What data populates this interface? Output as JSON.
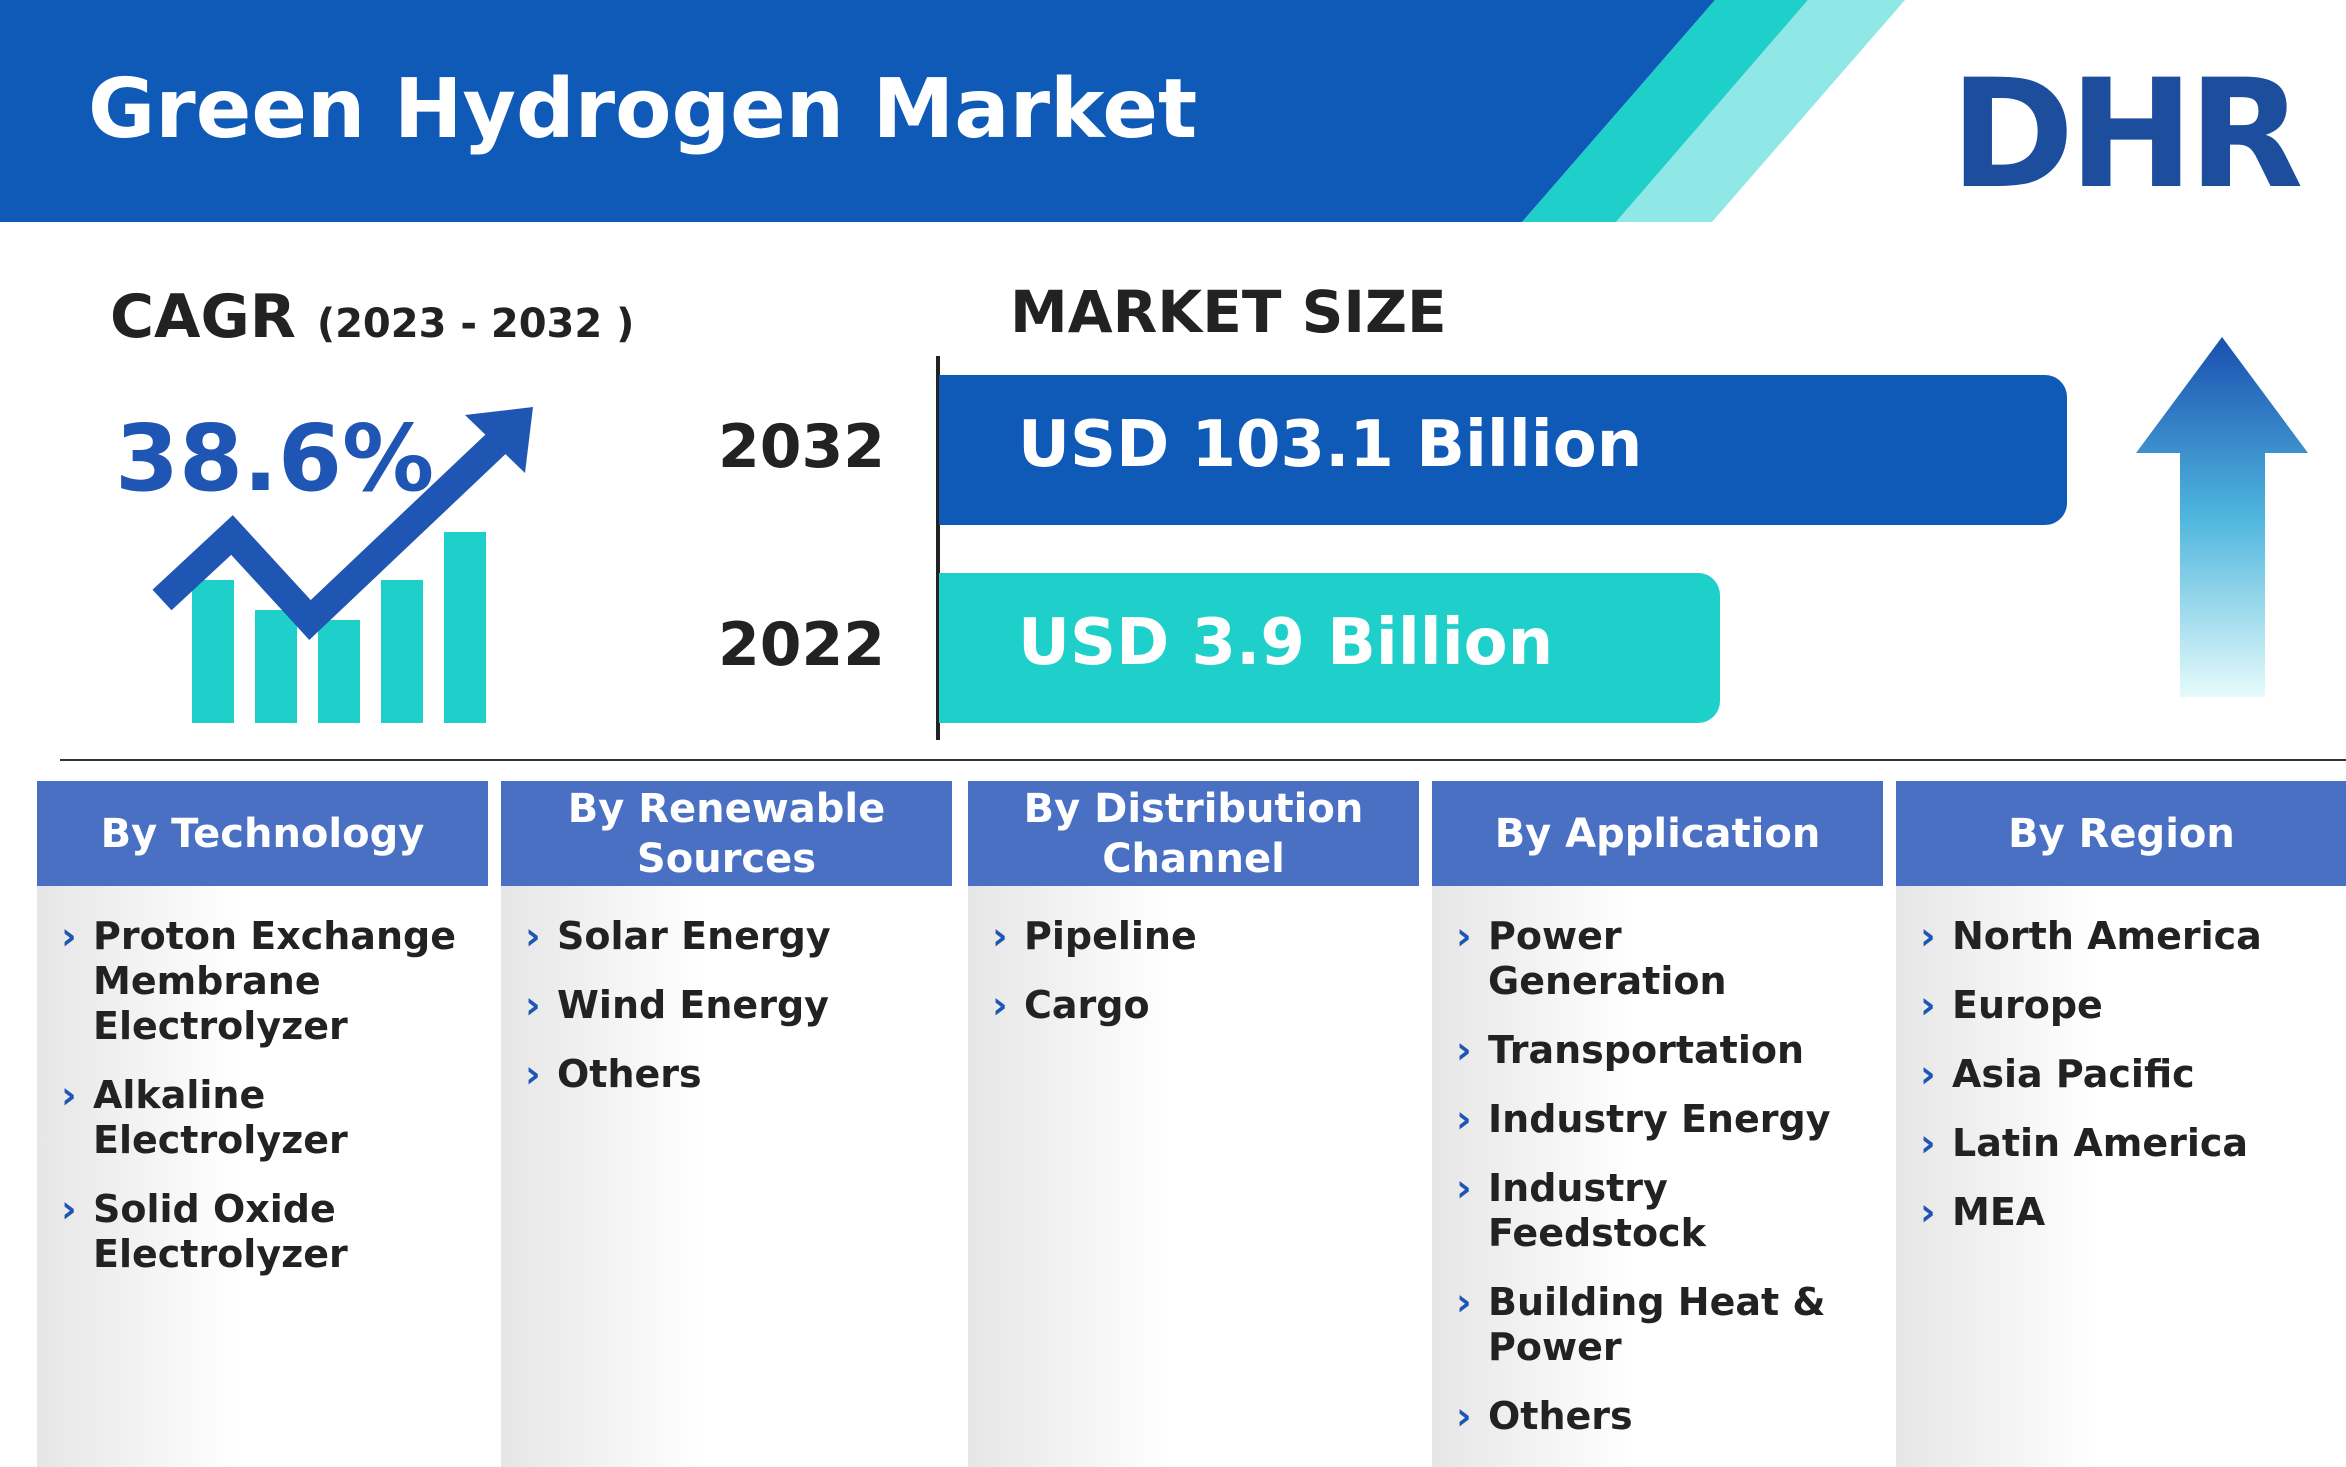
{
  "header": {
    "title": "Green Hydrogen Market",
    "logo": "DHR"
  },
  "cagr": {
    "label": "CAGR",
    "period": "(2023 - 2032 )",
    "value": "38.6%"
  },
  "market_size": {
    "title": "MARKET SIZE",
    "rows": [
      {
        "year": "2032",
        "value": "USD 103.1 Billion"
      },
      {
        "year": "2022",
        "value": "USD 3.9 Billion"
      }
    ]
  },
  "segments": [
    {
      "title": "By Technology",
      "items": [
        "Proton Exchange Membrane Electrolyzer",
        "Alkaline Electrolyzer",
        "Solid Oxide Electrolyzer"
      ]
    },
    {
      "title": "By Renewable Sources",
      "items": [
        "Solar Energy",
        "Wind Energy",
        "Others"
      ]
    },
    {
      "title": "By Distribution Channel",
      "items": [
        "Pipeline",
        "Cargo"
      ]
    },
    {
      "title": "By Application",
      "items": [
        "Power Generation",
        "Transportation",
        "Industry Energy",
        "Industry Feedstock",
        "Building Heat & Power",
        "Others"
      ]
    },
    {
      "title": "By Region",
      "items": [
        "North America",
        "Europe",
        "Asia Pacific",
        "Latin America",
        "MEA"
      ]
    }
  ]
}
